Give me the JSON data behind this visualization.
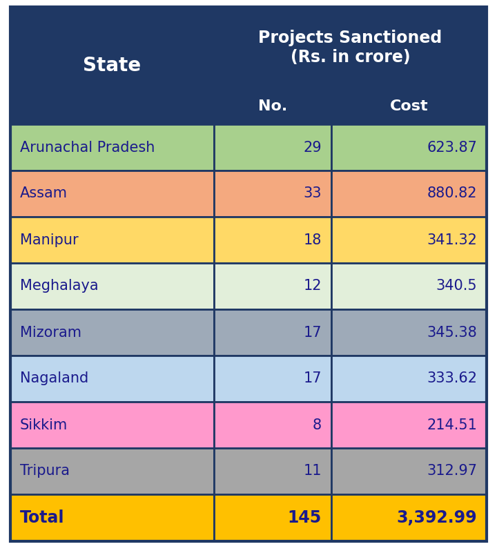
{
  "rows": [
    {
      "state": "Arunachal Pradesh",
      "no": "29",
      "cost": "623.87",
      "bg": "#a8d08d"
    },
    {
      "state": "Assam",
      "no": "33",
      "cost": "880.82",
      "bg": "#f4a97f"
    },
    {
      "state": "Manipur",
      "no": "18",
      "cost": "341.32",
      "bg": "#ffd966"
    },
    {
      "state": "Meghalaya",
      "no": "12",
      "cost": "340.5",
      "bg": "#e2efda"
    },
    {
      "state": "Mizoram",
      "no": "17",
      "cost": "345.38",
      "bg": "#9eaab8"
    },
    {
      "state": "Nagaland",
      "no": "17",
      "cost": "333.62",
      "bg": "#bdd7ee"
    },
    {
      "state": "Sikkim",
      "no": "8",
      "cost": "214.51",
      "bg": "#ff99cc"
    },
    {
      "state": "Tripura",
      "no": "11",
      "cost": "312.97",
      "bg": "#a6a6a6"
    }
  ],
  "total_row": {
    "state": "Total",
    "no": "145",
    "cost": "3,392.99",
    "bg": "#ffc000"
  },
  "header_bg": "#1f3864",
  "header_text_color": "#ffffff",
  "data_text_color": "#1a1a8c",
  "border_color": "#1f3864",
  "fig_width": 7.2,
  "fig_height": 8.01,
  "dpi": 100
}
